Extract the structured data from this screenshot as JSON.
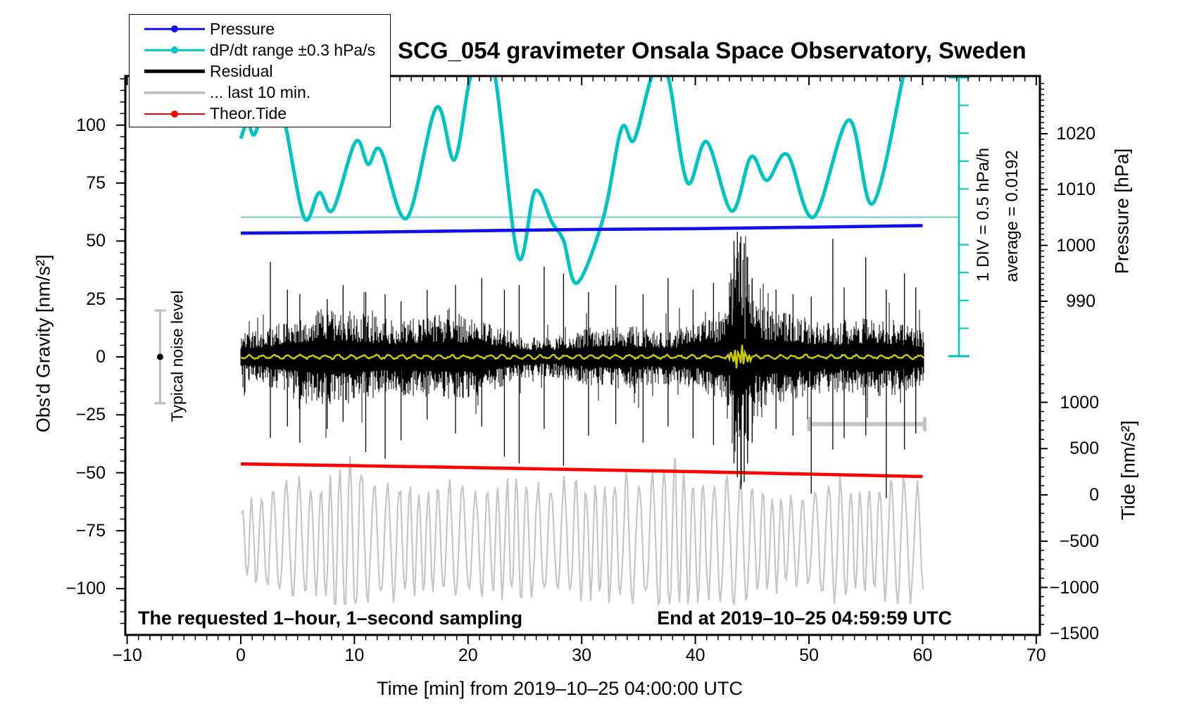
{
  "title": "SCG_054 gravimeter Onsala Space Observatory, Sweden",
  "colors": {
    "pressure": "#1010ee",
    "dpdt": "#00c3c3",
    "dpdt_reference": "#6fcfcf",
    "residual": "#000000",
    "residual_smoothed": "#cdcd00",
    "last10min": "#c6c6c6",
    "theor_tide": "#ff0000",
    "noise_marker": "#bdbdbd",
    "frame": "#000000"
  },
  "legend": {
    "items": [
      {
        "label": "Pressure",
        "swatch": "line-dot",
        "color": "#1010ee"
      },
      {
        "label": "dP/dt range ±0.3 hPa/s",
        "swatch": "line-dot",
        "color": "#00c3c3"
      },
      {
        "label": "Residual",
        "swatch": "thick-line",
        "color": "#000000"
      },
      {
        "label": "... last 10 min.",
        "swatch": "thick-line",
        "color": "#c0c0c0"
      },
      {
        "label": "Theor.Tide",
        "swatch": "line-dot",
        "color": "#ff0000"
      }
    ]
  },
  "annotations": {
    "sampling_note": "The requested 1–hour, 1–second sampling",
    "end_note": "End at 2019–10–25 04:59:59 UTC",
    "noise_marker_label": "Typical noise level",
    "scalebar_div_label": "1 DIV = 0.5 hPa/h",
    "scalebar_average_label": "average = 0.0192"
  },
  "axes": {
    "x": {
      "title": "Time [min] from 2019–10–25 04:00:00 UTC",
      "tick_labels": [
        -10,
        0,
        10,
        20,
        30,
        40,
        50,
        60,
        70
      ],
      "minor_step_min": 1,
      "range_min": [
        -10.2,
        70.3
      ]
    },
    "gravity": {
      "title": "Obs'd Gravity [nm/s²]",
      "tick_labels": [
        100,
        75,
        50,
        25,
        0,
        -25,
        -50,
        -75,
        -100
      ],
      "minor_step": 5,
      "range": [
        121,
        -120
      ]
    },
    "pressure": {
      "title": "Pressure [hPa]",
      "tick_labels": [
        1020,
        1010,
        1000,
        990
      ],
      "minor_step": 1,
      "range": [
        1030,
        980
      ]
    },
    "tide": {
      "title": "Tide [nm/s²]",
      "tick_labels": [
        1000,
        500,
        0,
        -500,
        -1000,
        -1500
      ],
      "minor_step": 100,
      "range": [
        1500,
        -1500
      ]
    }
  },
  "chart_data": {
    "type": "line",
    "x_unit": "minutes from 2019-10-25 04:00:00 UTC",
    "series": [
      {
        "name": "Pressure",
        "axis": "pressure",
        "unit": "hPa",
        "color": "#1010ee",
        "points": [
          [
            0,
            1002.2
          ],
          [
            10,
            1002.35
          ],
          [
            20,
            1002.6
          ],
          [
            30,
            1002.85
          ],
          [
            40,
            1003.0
          ],
          [
            50,
            1003.25
          ],
          [
            60,
            1003.55
          ]
        ]
      },
      {
        "name": "dP/dt",
        "axis": "scalebar",
        "unit": "hPa/h",
        "color": "#00c3c3",
        "div_value_hPa_per_h": 0.5,
        "average_hPa_per_h": 0.0192,
        "points": [
          [
            0,
            1.43
          ],
          [
            0.6,
            1.72
          ],
          [
            1.2,
            1.5
          ],
          [
            2.2,
            2.1
          ],
          [
            3.2,
            2.28
          ],
          [
            4.0,
            1.6
          ],
          [
            5.6,
            0.0
          ],
          [
            6.9,
            0.46
          ],
          [
            8.1,
            0.15
          ],
          [
            10.1,
            1.37
          ],
          [
            11.2,
            0.97
          ],
          [
            12.3,
            1.22
          ],
          [
            14.6,
            0.0
          ],
          [
            17.2,
            1.98
          ],
          [
            18.8,
            1.05
          ],
          [
            20.2,
            2.52
          ],
          [
            21.3,
            2.62
          ],
          [
            22.4,
            2.52
          ],
          [
            24.4,
            -0.69
          ],
          [
            25.9,
            0.49
          ],
          [
            27.4,
            -0.08
          ],
          [
            28.4,
            -0.4
          ],
          [
            29.6,
            -1.16
          ],
          [
            31.9,
            0.01
          ],
          [
            33.5,
            1.61
          ],
          [
            34.6,
            1.4
          ],
          [
            36.1,
            2.5
          ],
          [
            36.9,
            2.57
          ],
          [
            37.7,
            2.46
          ],
          [
            39.3,
            0.64
          ],
          [
            41.0,
            1.37
          ],
          [
            43.2,
            0.13
          ],
          [
            44.9,
            1.1
          ],
          [
            46.3,
            0.68
          ],
          [
            48.1,
            1.14
          ],
          [
            50.4,
            0.02
          ],
          [
            53.5,
            1.76
          ],
          [
            55.6,
            0.26
          ],
          [
            58.3,
            2.55
          ],
          [
            59.2,
            3.4
          ],
          [
            60.1,
            4.2
          ]
        ]
      },
      {
        "name": "Residual",
        "axis": "gravity",
        "unit": "nm/s²",
        "color": "#000000",
        "typical_band_nm": 13,
        "event": {
          "t_center_min": 44.0,
          "t_sigma_min": 0.75,
          "max_amp_nm": 57
        },
        "spikes": [
          [
            2.6,
            41,
            35
          ],
          [
            4.1,
            29,
            30
          ],
          [
            5.2,
            27,
            37
          ],
          [
            7.6,
            25,
            31
          ],
          [
            9.0,
            31,
            28
          ],
          [
            11.0,
            28,
            41
          ],
          [
            12.7,
            27,
            44
          ],
          [
            14.1,
            24,
            36
          ],
          [
            16.4,
            29,
            27
          ],
          [
            18.9,
            31,
            33
          ],
          [
            21.2,
            34,
            30
          ],
          [
            23.2,
            29,
            43
          ],
          [
            24.5,
            31,
            46
          ],
          [
            26.7,
            39,
            31
          ],
          [
            28.4,
            36,
            47
          ],
          [
            30.6,
            28,
            34
          ],
          [
            33.0,
            31,
            29
          ],
          [
            35.4,
            27,
            37
          ],
          [
            37.6,
            34,
            30
          ],
          [
            39.8,
            29,
            35
          ],
          [
            41.6,
            32,
            38
          ],
          [
            43.4,
            50,
            46
          ],
          [
            43.7,
            54,
            52
          ],
          [
            44.0,
            52,
            57
          ],
          [
            44.3,
            49,
            54
          ],
          [
            44.6,
            43,
            46
          ],
          [
            45.0,
            34,
            37
          ],
          [
            47.1,
            29,
            31
          ],
          [
            48.6,
            27,
            34
          ],
          [
            50.2,
            26,
            59
          ],
          [
            52.1,
            51,
            40
          ],
          [
            53.1,
            30,
            35
          ],
          [
            55.0,
            43,
            34
          ],
          [
            56.8,
            29,
            61
          ],
          [
            58.4,
            36,
            40
          ],
          [
            59.4,
            30,
            33
          ]
        ]
      },
      {
        "name": "Residual smoothed",
        "axis": "gravity",
        "unit": "nm/s²",
        "color": "#cdcd00",
        "level": 0,
        "wiggle_amp_nm": 0.7,
        "burst": {
          "t_center_min": 43.9,
          "t_sigma_min": 0.55,
          "amp_nm": 5
        }
      },
      {
        "name": "Residual last 10 min",
        "axis": "tide",
        "unit": "nm/s²",
        "color": "#c6c6c6",
        "center": -500,
        "period_min": 1.0,
        "amp_envelope": [
          418,
          494,
          547,
          593,
          639,
          684,
          623,
          654,
          730,
          851,
          988,
          699,
          654,
          623,
          684,
          654,
          608,
          578,
          654,
          699,
          623,
          578,
          608,
          654,
          699,
          730,
          654,
          608,
          654,
          699,
          654,
          608,
          654,
          699,
          730,
          654,
          699,
          897,
          973,
          760,
          684,
          654,
          684,
          730,
          684,
          654,
          608,
          578,
          532,
          502,
          547,
          593,
          699,
          775,
          654,
          608,
          654,
          730,
          775,
          699,
          547
        ]
      },
      {
        "name": "Theor.Tide",
        "axis": "tide",
        "unit": "nm/s²",
        "color": "#ff0000",
        "points": [
          [
            0,
            334
          ],
          [
            10,
            315
          ],
          [
            20,
            295
          ],
          [
            30,
            272
          ],
          [
            40,
            250
          ],
          [
            50,
            224
          ],
          [
            60,
            198
          ]
        ]
      }
    ],
    "noise_marker": {
      "t_min": -7.1,
      "value_nm": 0,
      "plus_minus_nm": 20
    },
    "last10_bar": {
      "t_start_min": 50,
      "t_end_min": 60,
      "gravity_level_nm": -29
    },
    "dpdt_reference_line": {
      "axis": "scalebar",
      "value_hPa_per_h": 0.0192
    }
  }
}
